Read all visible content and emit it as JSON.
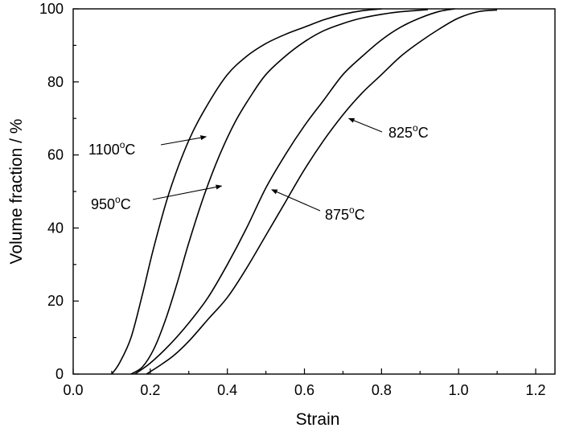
{
  "chart_data": {
    "type": "line",
    "title": "",
    "xlabel": "Strain",
    "ylabel": "Volume fraction / %",
    "xlim": [
      0.0,
      1.25
    ],
    "ylim": [
      0,
      100
    ],
    "xticks": [
      "0.0",
      "0.2",
      "0.4",
      "0.6",
      "0.8",
      "1.0",
      "1.2"
    ],
    "yticks": [
      "0",
      "20",
      "40",
      "60",
      "80",
      "100"
    ],
    "grid": false,
    "series": [
      {
        "name": "1100°C",
        "x": [
          0.1,
          0.12,
          0.15,
          0.18,
          0.21,
          0.25,
          0.3,
          0.35,
          0.4,
          0.45,
          0.5,
          0.55,
          0.6,
          0.65,
          0.7,
          0.75,
          0.8
        ],
        "y": [
          0,
          3,
          10,
          22,
          35,
          50,
          64,
          74,
          82,
          87,
          90.5,
          93,
          95,
          97,
          98.5,
          99.5,
          100
        ]
      },
      {
        "name": "950°C",
        "x": [
          0.15,
          0.18,
          0.21,
          0.24,
          0.27,
          0.3,
          0.34,
          0.38,
          0.42,
          0.46,
          0.5,
          0.55,
          0.6,
          0.65,
          0.7,
          0.75,
          0.8,
          0.85,
          0.92
        ],
        "y": [
          0,
          2,
          7,
          15,
          25,
          36,
          49,
          60,
          69,
          76,
          82,
          87,
          91,
          94,
          96,
          97.5,
          98.5,
          99.2,
          99.8
        ]
      },
      {
        "name": "875°C",
        "x": [
          0.16,
          0.2,
          0.25,
          0.3,
          0.35,
          0.4,
          0.45,
          0.5,
          0.55,
          0.6,
          0.65,
          0.7,
          0.75,
          0.8,
          0.85,
          0.9,
          0.95,
          0.99
        ],
        "y": [
          0,
          3,
          8,
          14,
          21,
          30,
          40,
          51,
          60,
          68,
          75,
          82,
          87,
          91.5,
          95,
          97.5,
          99.3,
          100
        ]
      },
      {
        "name": "825°C",
        "x": [
          0.19,
          0.22,
          0.26,
          0.3,
          0.35,
          0.4,
          0.45,
          0.5,
          0.55,
          0.6,
          0.65,
          0.7,
          0.75,
          0.8,
          0.85,
          0.9,
          0.95,
          1.0,
          1.05,
          1.1
        ],
        "y": [
          0,
          2,
          5,
          9,
          15,
          21,
          29,
          38,
          47,
          56,
          64,
          71,
          77,
          82,
          87,
          91,
          94.5,
          97.5,
          99.2,
          99.7
        ]
      }
    ],
    "annotations": [
      {
        "series": "1100°C",
        "text": "1100",
        "unit": "C",
        "sup": "o",
        "point_x": 0.345,
        "point_y": 65
      },
      {
        "series": "950°C",
        "text": "950",
        "unit": "C",
        "sup": "o",
        "point_x": 0.385,
        "point_y": 51.5
      },
      {
        "series": "875°C",
        "text": "875",
        "unit": "C",
        "sup": "o",
        "point_x": 0.515,
        "point_y": 50.5
      },
      {
        "series": "825°C",
        "text": "825",
        "unit": "C",
        "sup": "o",
        "point_x": 0.715,
        "point_y": 70
      }
    ]
  }
}
